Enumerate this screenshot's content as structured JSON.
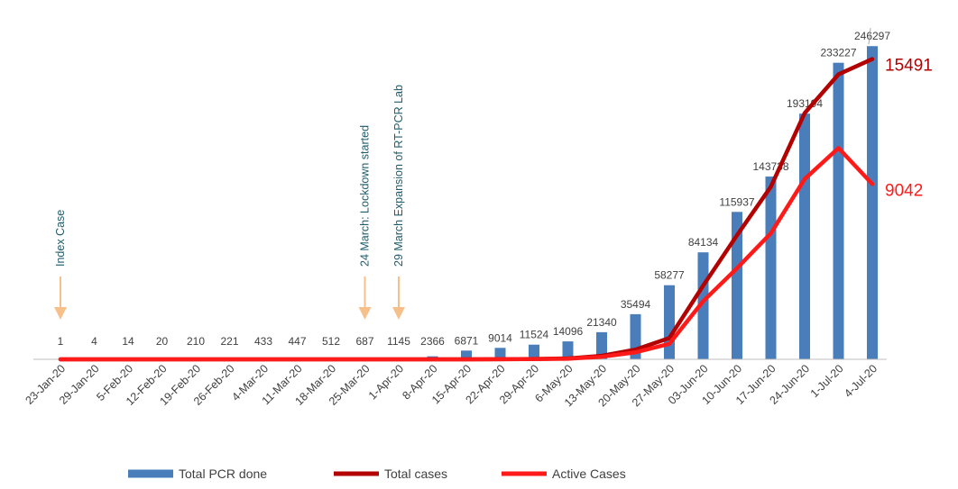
{
  "chart_data": {
    "type": "bar",
    "categories": [
      "23-Jan-20",
      "29-Jan-20",
      "5-Feb-20",
      "12-Feb-20",
      "19-Feb-20",
      "26-Feb-20",
      "4-Mar-20",
      "11-Mar-20",
      "18-Mar-20",
      "25-Mar-20",
      "1-Apr-20",
      "8-Apr-20",
      "15-Apr-20",
      "22-Apr-20",
      "29-Apr-20",
      "6-May-20",
      "13-May-20",
      "20-May-20",
      "27-May-20",
      "03-Jun-20",
      "10-Jun-20",
      "17-Jun-20",
      "24-Jun-20",
      "1-Jul-20",
      "4-Jul-20"
    ],
    "series": [
      {
        "name": "Total PCR done",
        "kind": "bar",
        "color": "#4a7ebb",
        "values": [
          1,
          4,
          14,
          20,
          210,
          221,
          433,
          447,
          512,
          687,
          1145,
          2366,
          6871,
          9014,
          11524,
          14096,
          21340,
          35494,
          58277,
          84134,
          115937,
          143738,
          193194,
          233227,
          246297
        ]
      },
      {
        "name": "Total  cases",
        "kind": "line",
        "color": "#b30000",
        "values": [
          0,
          0,
          0,
          0,
          0,
          0,
          0,
          0,
          0,
          0,
          0,
          0,
          0,
          5,
          15,
          45,
          180,
          500,
          1100,
          3800,
          6400,
          8900,
          12700,
          14700,
          15491
        ]
      },
      {
        "name": "Active Cases",
        "kind": "line",
        "color": "#ff1a1a",
        "values": [
          0,
          0,
          0,
          0,
          0,
          0,
          0,
          0,
          0,
          0,
          0,
          0,
          0,
          5,
          12,
          30,
          130,
          360,
          800,
          3000,
          4700,
          6500,
          9300,
          10900,
          9042
        ]
      }
    ],
    "bar_labels": [
      "1",
      "4",
      "14",
      "20",
      "210",
      "221",
      "433",
      "447",
      "512",
      "687",
      "1145",
      "2366",
      "6871",
      "9014",
      "11524",
      "14096",
      "21340",
      "35494",
      "58277",
      "84134",
      "115937",
      "143738",
      "193194",
      "233227",
      "246297"
    ],
    "end_labels": [
      {
        "series": "Total  cases",
        "text": "15491"
      },
      {
        "series": "Active Cases",
        "text": "9042"
      }
    ],
    "annotations": [
      {
        "category_index": 0,
        "text": "Index Case"
      },
      {
        "category_index": 9,
        "text": "24 March: Lockdown started"
      },
      {
        "category_index": 10,
        "text": "29 March Expansion of RT-PCR Lab"
      }
    ],
    "annotation_arrow_color": "#f7c08a",
    "bar_axis_max": 250000,
    "line_axis_max": 16400,
    "grid": false,
    "legend_position": "bottom"
  }
}
